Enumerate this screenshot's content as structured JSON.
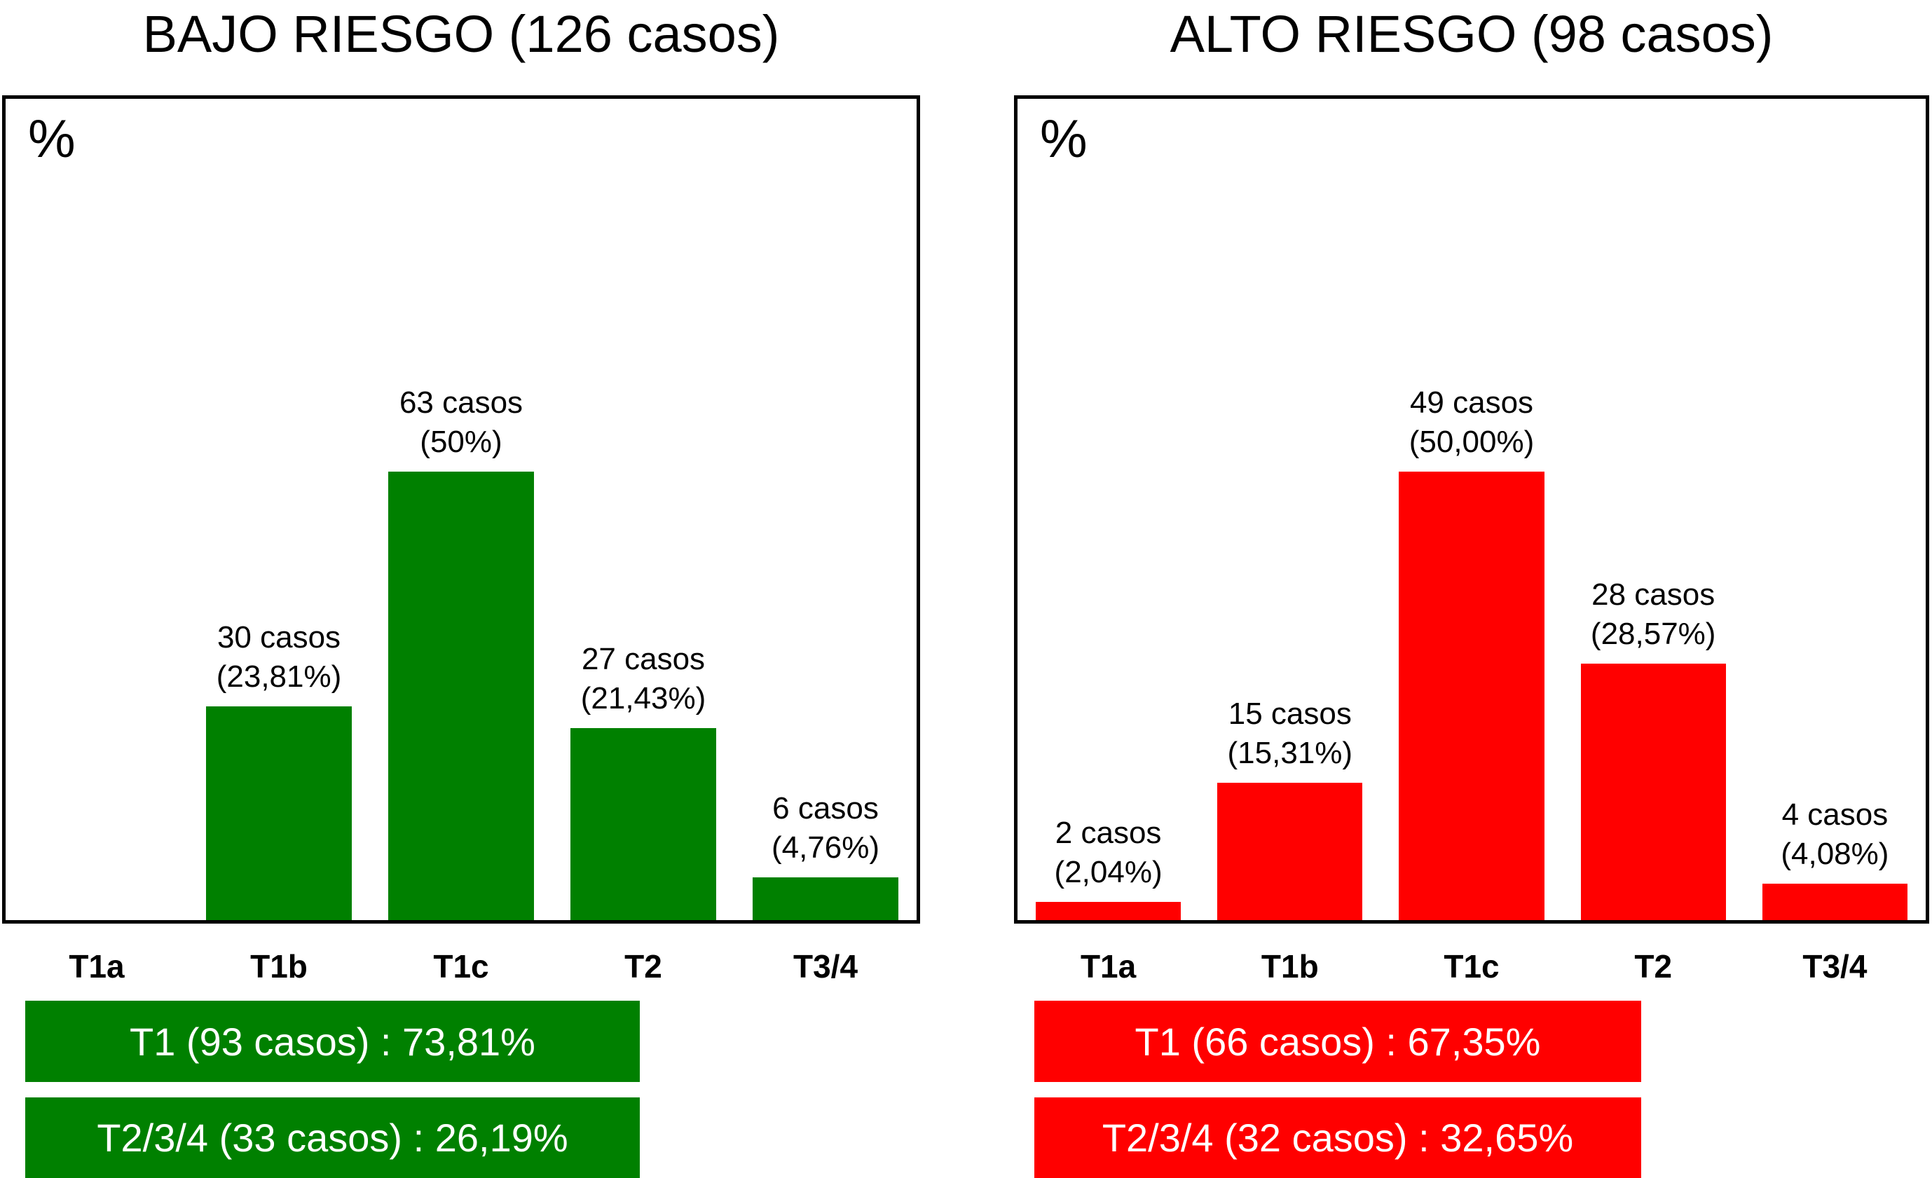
{
  "figure": {
    "description": "Two side-by-side bar charts of tumour stage distribution by risk group"
  },
  "chart_data": [
    {
      "type": "bar",
      "title": "BAJO RIESGO (126 casos)",
      "y_unit_label": "%",
      "bar_color": "#008000",
      "grid": false,
      "legend": "none",
      "categories": [
        "T1a",
        "T1b",
        "T1c",
        "T2",
        "T3/4"
      ],
      "values_pct": [
        0,
        23.81,
        50,
        21.43,
        4.76
      ],
      "cases": [
        0,
        30,
        63,
        27,
        6
      ],
      "bar_labels": [
        null,
        {
          "line1": "30 casos",
          "line2": "(23,81%)"
        },
        {
          "line1": "63 casos",
          "line2": "(50%)"
        },
        {
          "line1": "27 casos",
          "line2": "(21,43%)"
        },
        {
          "line1": "6 casos",
          "line2": "(4,76%)"
        }
      ],
      "summary_rows": [
        "T1 (93 casos) : 73,81%",
        "T2/3/4 (33 casos) : 26,19%"
      ]
    },
    {
      "type": "bar",
      "title": "ALTO RIESGO (98 casos)",
      "y_unit_label": "%",
      "bar_color": "#FF0000",
      "grid": false,
      "legend": "none",
      "categories": [
        "T1a",
        "T1b",
        "T1c",
        "T2",
        "T3/4"
      ],
      "values_pct": [
        2.04,
        15.31,
        50,
        28.57,
        4.08
      ],
      "cases": [
        2,
        15,
        49,
        28,
        4
      ],
      "bar_labels": [
        {
          "line1": "2 casos",
          "line2": "(2,04%)"
        },
        {
          "line1": "15 casos",
          "line2": "(15,31%)"
        },
        {
          "line1": "49 casos",
          "line2": "(50,00%)"
        },
        {
          "line1": "28 casos",
          "line2": "(28,57%)"
        },
        {
          "line1": "4 casos",
          "line2": "(4,08%)"
        }
      ],
      "summary_rows": [
        "T1 (66 casos) : 67,35%",
        "T2/3/4 (32 casos) : 32,65%"
      ]
    }
  ]
}
